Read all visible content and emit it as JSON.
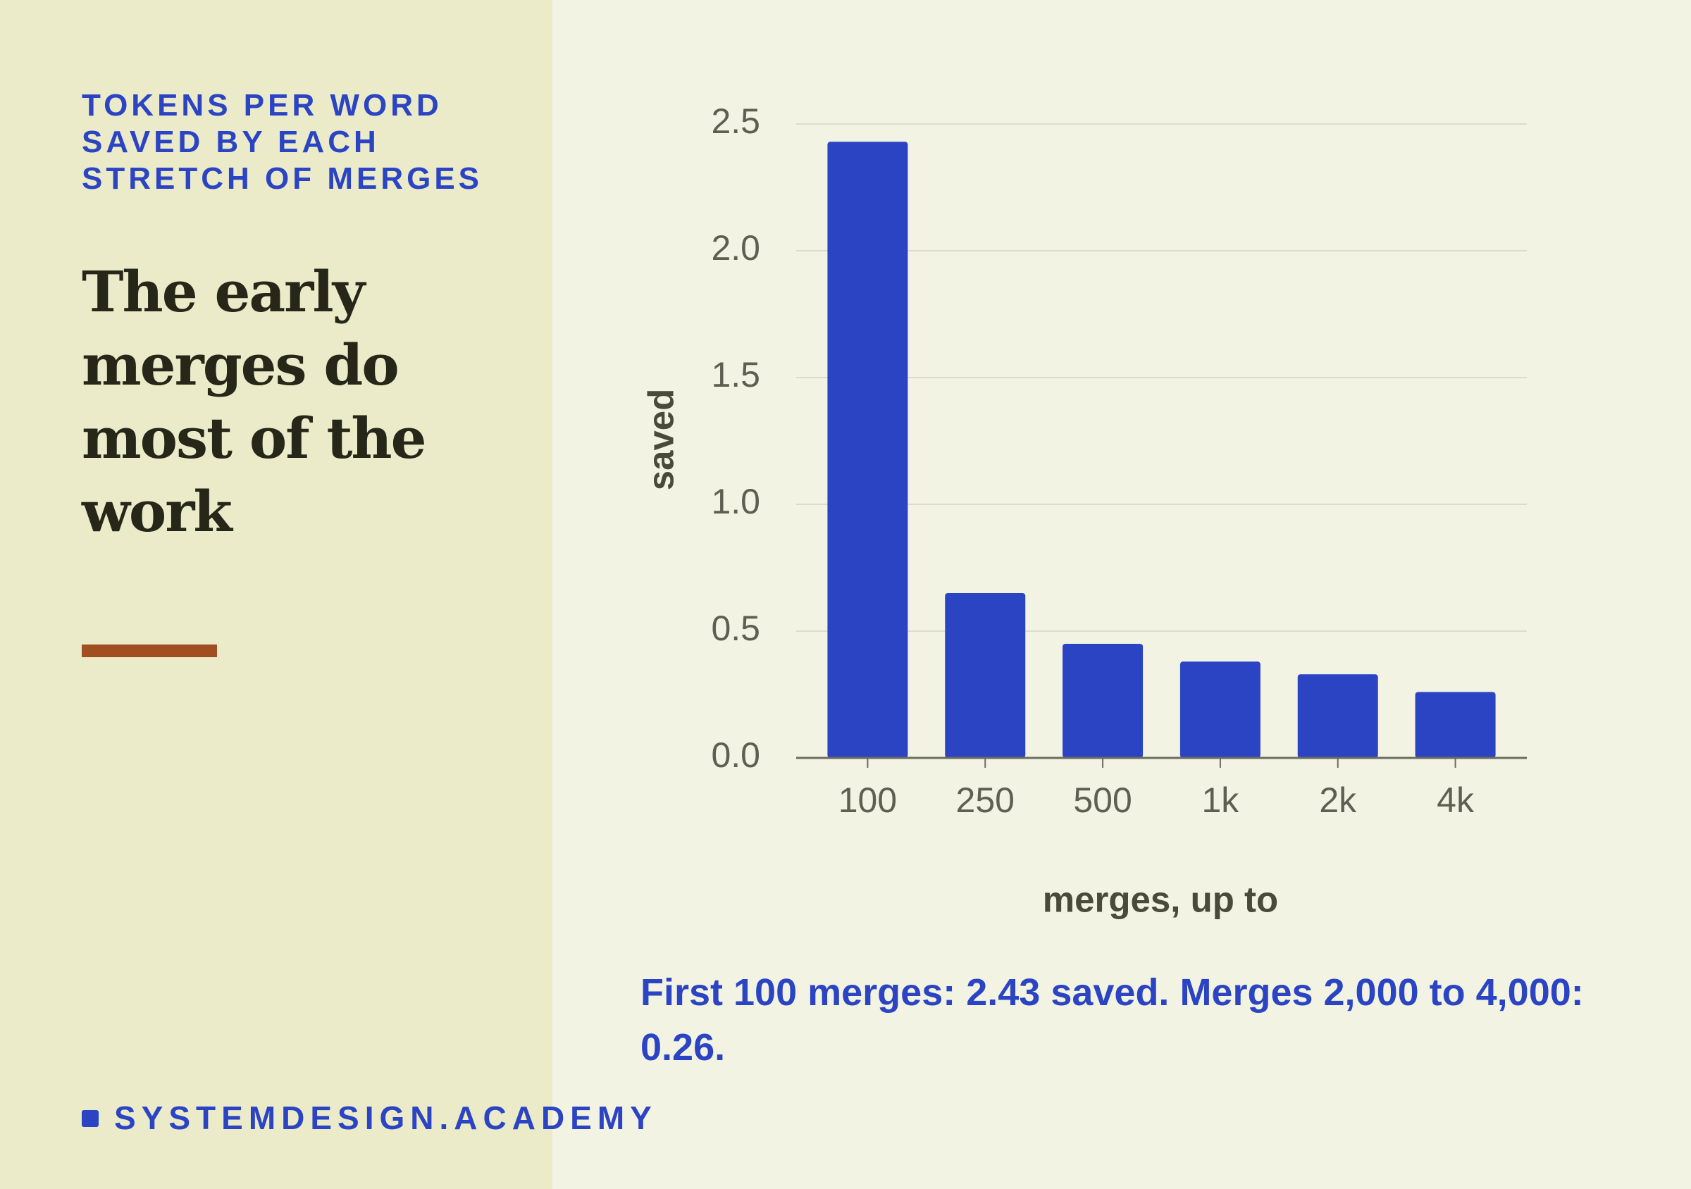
{
  "kicker": "TOKENS PER WORD SAVED BY EACH STRETCH OF MERGES",
  "headline": "The early merges do most of the work",
  "caption": "First 100 merges: 2.43 saved. Merges 2,000 to 4,000: 0.26.",
  "footer": "SYSTEMDESIGN.ACADEMY",
  "chart_data": {
    "type": "bar",
    "x_label": "merges, up to",
    "y_label": "saved",
    "categories": [
      "100",
      "250",
      "500",
      "1k",
      "2k",
      "4k"
    ],
    "values": [
      2.43,
      0.65,
      0.45,
      0.38,
      0.33,
      0.26
    ],
    "color": "#2b44c4",
    "ylim": [
      0,
      2.5
    ],
    "yticks": [
      {
        "value": 0,
        "label": "0.0"
      },
      0.5,
      {
        "value": 1,
        "label": "1.0"
      },
      1.5,
      {
        "value": 2,
        "label": "2.0"
      },
      2.5
    ],
    "grid": true
  }
}
